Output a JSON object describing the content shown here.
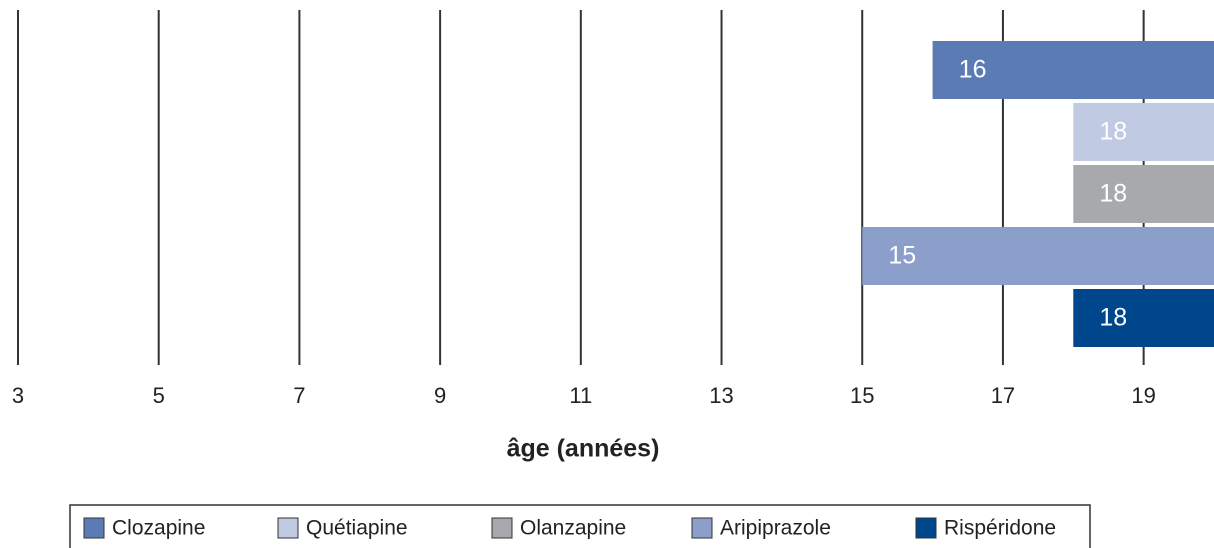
{
  "chart_data": {
    "type": "bar",
    "orientation": "horizontal",
    "x_label": "âge (années)",
    "series": [
      {
        "name": "Clozapine",
        "color": "#5b7bb4",
        "values": [
          16
        ]
      },
      {
        "name": "Quétiapine",
        "color": "#c1cae3",
        "values": [
          18
        ]
      },
      {
        "name": "Olanzapine",
        "color": "#a8a9ac",
        "values": [
          18
        ]
      },
      {
        "name": "Aripiprazole",
        "color": "#8c9fcb",
        "values": [
          15
        ]
      },
      {
        "name": "Rispéridone",
        "color": "#00468c",
        "values": [
          18
        ]
      }
    ],
    "xlim": [
      3,
      20
    ],
    "xticks": [
      3,
      5,
      7,
      9,
      11,
      13,
      15,
      17,
      19
    ],
    "grid": true
  }
}
